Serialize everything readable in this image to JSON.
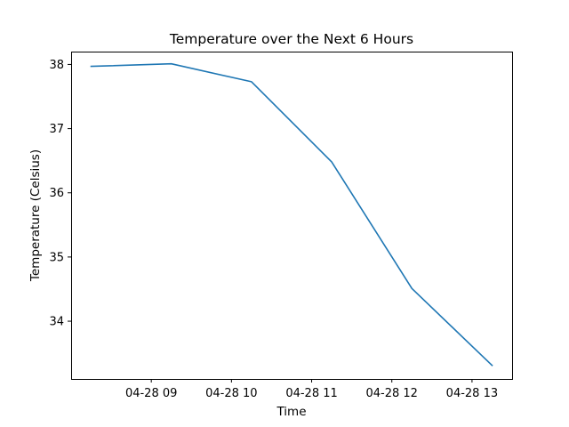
{
  "chart_data": {
    "type": "line",
    "title": "Temperature over the Next 6 Hours",
    "xlabel": "Time",
    "ylabel": "Temperature (Celsius)",
    "x": [
      "04-28 08:15",
      "04-28 09:15",
      "04-28 10:15",
      "04-28 11:15",
      "04-28 12:15",
      "04-28 13:15"
    ],
    "x_ticks": [
      "04-28 09",
      "04-28 10",
      "04-28 11",
      "04-28 12",
      "04-28 13"
    ],
    "y_ticks": [
      "34",
      "35",
      "36",
      "37",
      "38"
    ],
    "ylim": [
      33.1,
      38.2
    ],
    "grid": false,
    "series": [
      {
        "values": [
          37.97,
          38.01,
          37.73,
          36.48,
          34.51,
          33.31
        ],
        "color": "#1f77b4"
      }
    ]
  }
}
